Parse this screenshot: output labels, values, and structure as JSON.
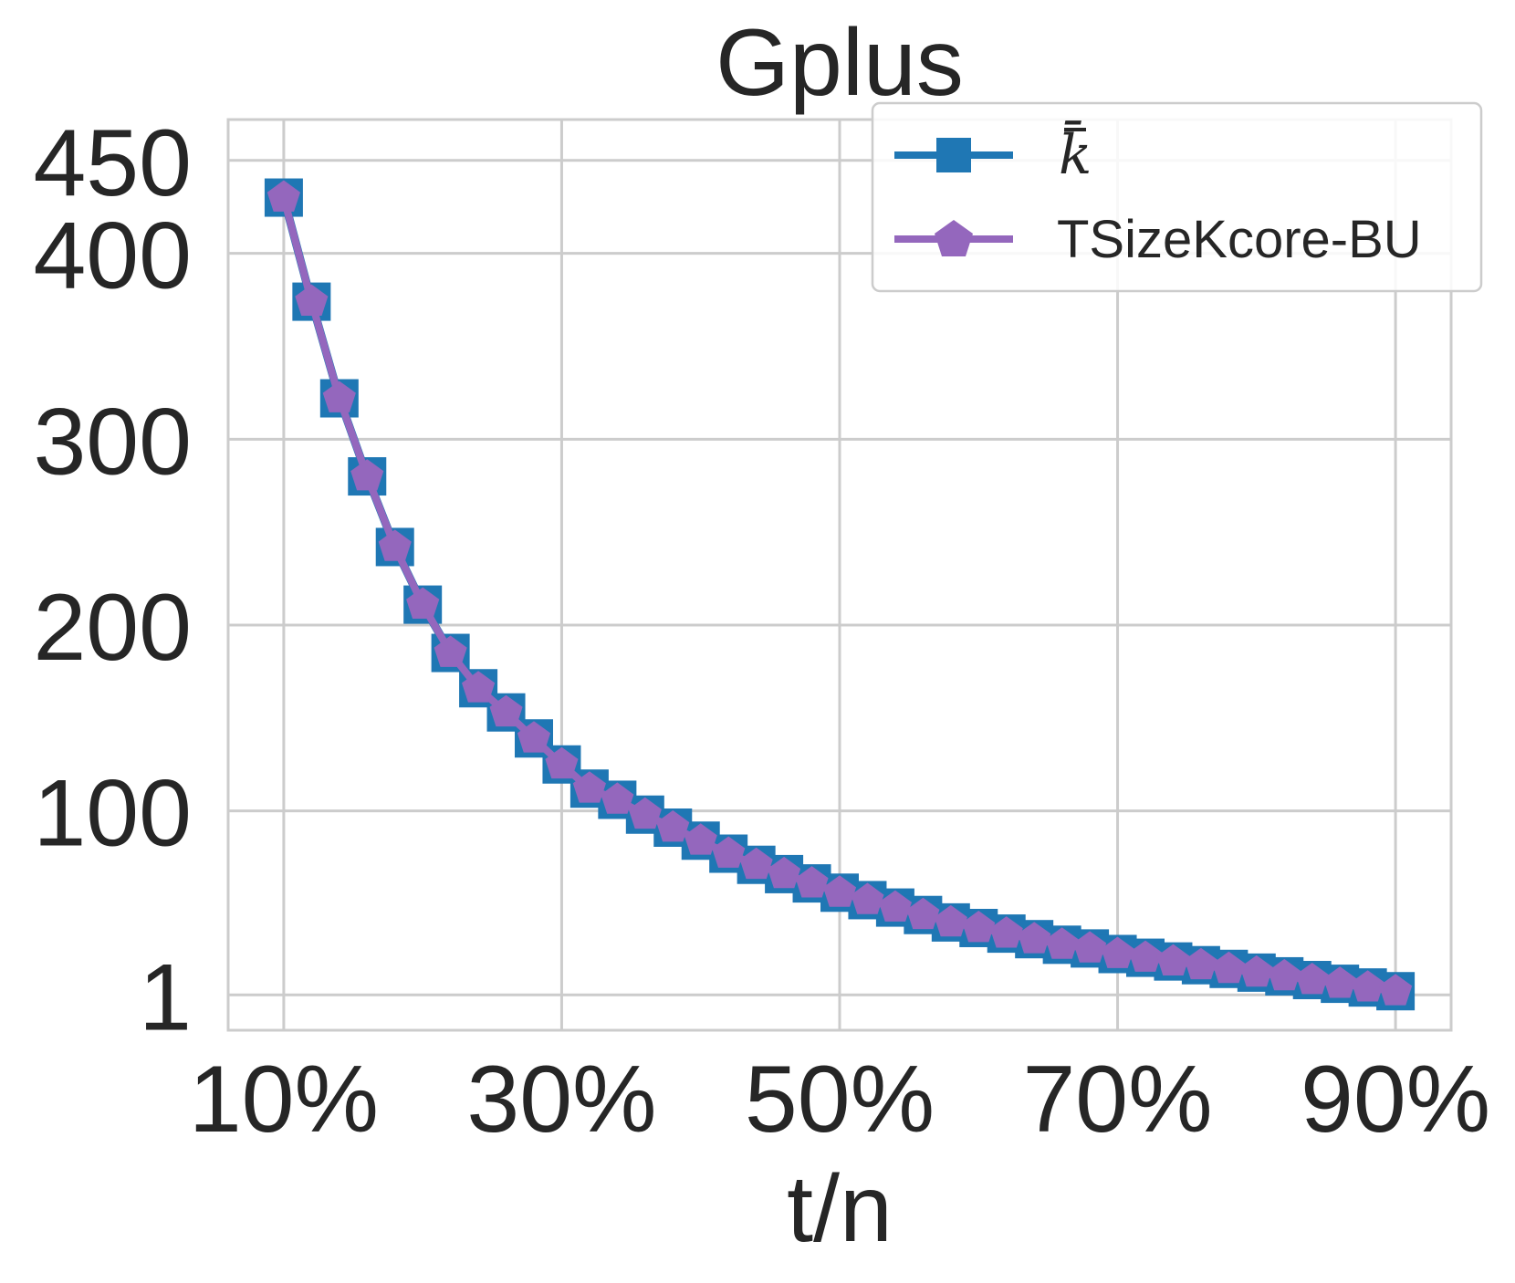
{
  "chart_data": {
    "type": "line",
    "title": "Gplus",
    "xlabel": "t/n",
    "ylabel": "",
    "x_tick_labels": [
      "10%",
      "30%",
      "50%",
      "70%",
      "90%"
    ],
    "x_ticks": [
      10,
      30,
      50,
      70,
      90
    ],
    "y_tick_labels": [
      "1",
      "100",
      "200",
      "300",
      "400",
      "450"
    ],
    "y_ticks": [
      1,
      100,
      200,
      300,
      400,
      450
    ],
    "xlim": [
      6,
      94
    ],
    "ylim": [
      -18,
      472
    ],
    "grid": true,
    "legend_position": "top-right",
    "x": [
      10,
      12,
      14,
      16,
      18,
      20,
      22,
      24,
      26,
      28,
      30,
      32,
      34,
      36,
      38,
      40,
      42,
      44,
      46,
      48,
      50,
      52,
      54,
      56,
      58,
      60,
      62,
      64,
      66,
      68,
      70,
      72,
      74,
      76,
      78,
      80,
      82,
      84,
      86,
      88,
      90
    ],
    "series": [
      {
        "name": "k̄",
        "color": "#1f77b4",
        "marker": "square",
        "values": [
          430,
          374,
          322,
          280,
          242,
          211,
          185,
          166,
          153,
          139,
          125,
          112,
          106,
          98,
          91,
          84,
          77,
          71,
          66,
          61,
          56,
          52,
          48,
          44,
          40,
          37,
          34,
          31,
          28,
          26,
          23,
          21,
          19,
          17,
          15,
          13,
          11,
          9,
          7,
          5,
          3
        ]
      },
      {
        "name": "TSizeKcore-BU",
        "color": "#9467bd",
        "marker": "pentagon",
        "values": [
          430,
          374,
          322,
          280,
          242,
          211,
          185,
          166,
          153,
          139,
          125,
          112,
          106,
          98,
          91,
          84,
          77,
          71,
          66,
          61,
          56,
          52,
          48,
          44,
          40,
          37,
          34,
          31,
          28,
          26,
          23,
          21,
          19,
          17,
          15,
          13,
          11,
          9,
          7,
          5,
          3
        ]
      }
    ]
  }
}
